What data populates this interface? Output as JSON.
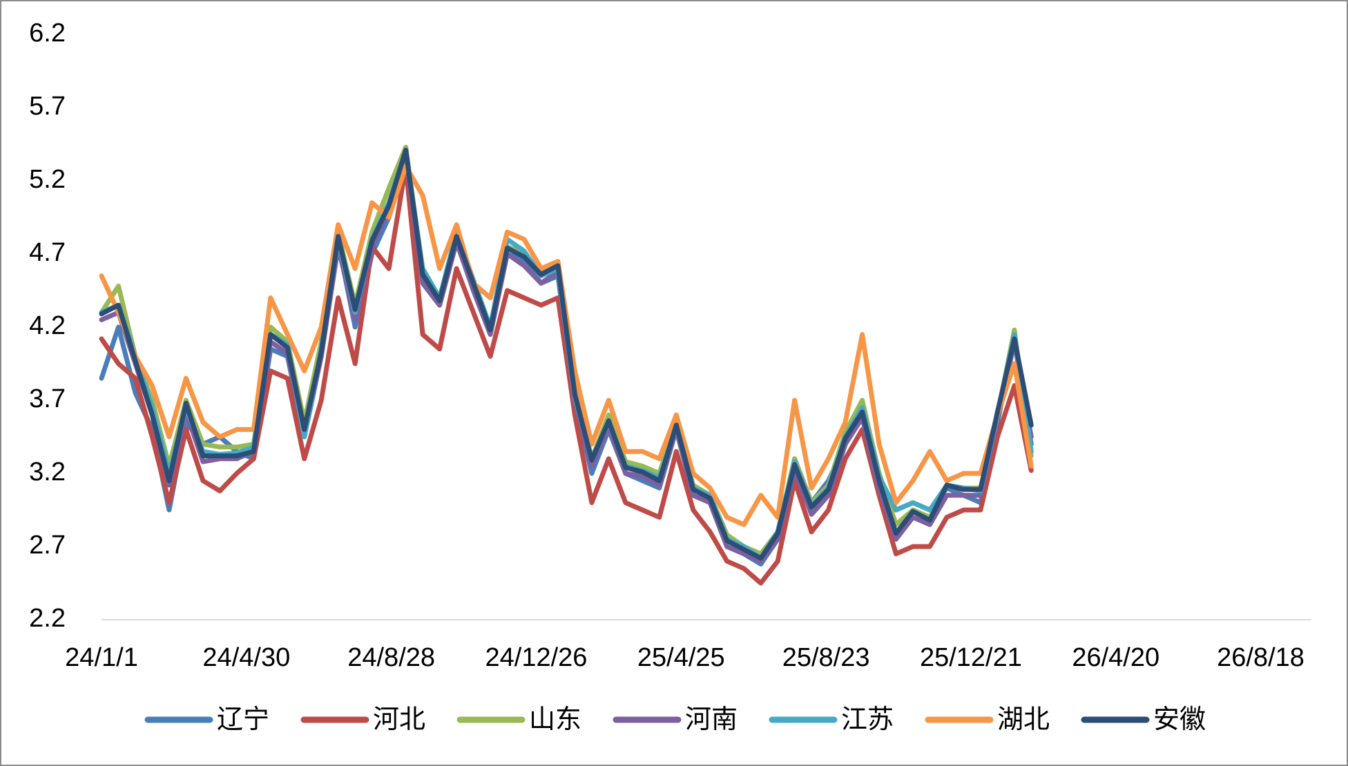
{
  "chart_data": {
    "type": "line",
    "x": [
      "2024-01-01",
      "2024-01-15",
      "2024-01-29",
      "2024-02-12",
      "2024-02-26",
      "2024-03-11",
      "2024-03-25",
      "2024-04-08",
      "2024-04-22",
      "2024-05-06",
      "2024-05-20",
      "2024-06-03",
      "2024-06-17",
      "2024-07-01",
      "2024-07-15",
      "2024-07-29",
      "2024-08-12",
      "2024-08-26",
      "2024-09-09",
      "2024-09-23",
      "2024-10-07",
      "2024-10-21",
      "2024-11-04",
      "2024-11-18",
      "2024-12-02",
      "2024-12-16",
      "2024-12-30",
      "2025-01-13",
      "2025-01-27",
      "2025-02-10",
      "2025-02-24",
      "2025-03-10",
      "2025-03-24",
      "2025-04-07",
      "2025-04-21",
      "2025-05-05",
      "2025-05-19",
      "2025-06-02",
      "2025-06-16",
      "2025-06-30",
      "2025-07-14",
      "2025-07-28",
      "2025-08-11",
      "2025-08-25",
      "2025-09-08",
      "2025-09-22",
      "2025-10-06",
      "2025-10-20",
      "2025-11-03",
      "2025-11-17",
      "2025-12-01",
      "2025-12-15",
      "2025-12-29",
      "2026-01-12",
      "2026-01-26",
      "2026-02-09"
    ],
    "series": [
      {
        "name": "辽宁",
        "color": "#4a7ebb",
        "values": [
          3.85,
          4.2,
          3.75,
          3.5,
          2.95,
          3.55,
          3.4,
          3.45,
          3.35,
          3.3,
          4.05,
          4.0,
          3.45,
          4.0,
          4.78,
          4.2,
          4.7,
          4.95,
          5.41,
          4.5,
          4.35,
          4.8,
          4.45,
          4.15,
          4.7,
          4.65,
          4.5,
          4.55,
          3.7,
          3.2,
          3.5,
          3.2,
          3.15,
          3.1,
          3.5,
          3.05,
          3.0,
          2.7,
          2.65,
          2.58,
          2.75,
          3.3,
          3.0,
          3.15,
          3.4,
          3.6,
          3.1,
          2.95,
          3.0,
          2.95,
          3.1,
          3.05,
          3.0,
          3.55,
          4.1,
          3.4
        ]
      },
      {
        "name": "河北",
        "color": "#be4b48",
        "values": [
          4.12,
          3.95,
          3.85,
          3.45,
          3.0,
          3.5,
          3.15,
          3.08,
          3.2,
          3.3,
          3.9,
          3.85,
          3.3,
          3.7,
          4.4,
          3.95,
          4.75,
          4.6,
          5.3,
          4.15,
          4.05,
          4.6,
          4.3,
          4.0,
          4.45,
          4.4,
          4.35,
          4.4,
          3.6,
          3.0,
          3.3,
          3.0,
          2.95,
          2.9,
          3.35,
          2.95,
          2.8,
          2.6,
          2.55,
          2.45,
          2.6,
          3.15,
          2.8,
          2.95,
          3.3,
          3.5,
          3.05,
          2.65,
          2.7,
          2.7,
          2.9,
          2.95,
          2.95,
          3.45,
          3.8,
          3.22
        ]
      },
      {
        "name": "山东",
        "color": "#98b954",
        "values": [
          4.3,
          4.48,
          4.0,
          3.7,
          3.25,
          3.7,
          3.4,
          3.38,
          3.38,
          3.4,
          4.2,
          4.1,
          3.55,
          4.1,
          4.85,
          4.35,
          4.85,
          5.15,
          5.43,
          4.58,
          4.38,
          4.85,
          4.52,
          4.2,
          4.75,
          4.7,
          4.58,
          4.62,
          3.78,
          3.3,
          3.6,
          3.28,
          3.25,
          3.2,
          3.55,
          3.12,
          3.05,
          2.78,
          2.7,
          2.65,
          2.8,
          3.3,
          3.0,
          3.12,
          3.48,
          3.7,
          3.2,
          2.85,
          2.95,
          2.9,
          3.12,
          3.1,
          3.1,
          3.6,
          4.18,
          3.32
        ]
      },
      {
        "name": "河南",
        "color": "#7d60a0",
        "values": [
          4.25,
          4.3,
          3.95,
          3.6,
          3.12,
          3.62,
          3.28,
          3.3,
          3.3,
          3.35,
          4.1,
          4.02,
          3.48,
          4.0,
          4.75,
          4.25,
          4.75,
          5.0,
          5.38,
          4.5,
          4.35,
          4.78,
          4.45,
          4.15,
          4.7,
          4.62,
          4.5,
          4.58,
          3.7,
          3.25,
          3.52,
          3.2,
          3.18,
          3.12,
          3.5,
          3.05,
          3.0,
          2.7,
          2.65,
          2.6,
          2.75,
          3.22,
          2.92,
          3.05,
          3.4,
          3.58,
          3.1,
          2.75,
          2.9,
          2.85,
          3.05,
          3.05,
          3.05,
          3.58,
          4.1,
          3.45
        ]
      },
      {
        "name": "江苏",
        "color": "#46aac5",
        "values": [
          4.3,
          4.35,
          4.0,
          3.65,
          3.2,
          3.65,
          3.35,
          3.33,
          3.34,
          3.38,
          4.15,
          4.08,
          3.45,
          4.05,
          4.8,
          4.3,
          4.8,
          5.05,
          5.4,
          4.6,
          4.4,
          4.85,
          4.52,
          4.2,
          4.8,
          4.72,
          4.55,
          4.6,
          3.72,
          3.3,
          3.55,
          3.25,
          3.22,
          3.17,
          3.52,
          3.1,
          3.05,
          2.75,
          2.7,
          2.62,
          2.8,
          3.28,
          2.98,
          3.1,
          3.45,
          3.65,
          3.18,
          2.95,
          3.0,
          2.95,
          3.12,
          3.1,
          3.08,
          3.6,
          4.15,
          3.35
        ]
      },
      {
        "name": "湖北",
        "color": "#f79646",
        "values": [
          4.55,
          4.3,
          4.0,
          3.8,
          3.45,
          3.85,
          3.55,
          3.45,
          3.5,
          3.5,
          4.4,
          4.15,
          3.9,
          4.2,
          4.9,
          4.6,
          5.05,
          4.95,
          5.3,
          5.1,
          4.6,
          4.9,
          4.5,
          4.4,
          4.85,
          4.8,
          4.6,
          4.65,
          3.9,
          3.4,
          3.7,
          3.35,
          3.35,
          3.3,
          3.6,
          3.2,
          3.1,
          2.9,
          2.85,
          3.05,
          2.9,
          3.7,
          3.1,
          3.3,
          3.55,
          4.15,
          3.4,
          3.0,
          3.15,
          3.35,
          3.15,
          3.2,
          3.2,
          3.6,
          3.95,
          3.25
        ]
      },
      {
        "name": "安徽",
        "color": "#2c4d75",
        "values": [
          4.29,
          4.35,
          3.97,
          3.6,
          3.15,
          3.68,
          3.32,
          3.32,
          3.32,
          3.35,
          4.15,
          4.06,
          3.5,
          4.03,
          4.82,
          4.32,
          4.79,
          5.03,
          5.41,
          4.56,
          4.38,
          4.82,
          4.5,
          4.18,
          4.74,
          4.68,
          4.56,
          4.62,
          3.74,
          3.29,
          3.56,
          3.24,
          3.21,
          3.15,
          3.53,
          3.09,
          3.03,
          2.74,
          2.68,
          2.62,
          2.79,
          3.26,
          2.97,
          3.09,
          3.44,
          3.62,
          3.15,
          2.79,
          2.94,
          2.88,
          3.12,
          3.09,
          3.09,
          3.62,
          4.12,
          3.53
        ]
      }
    ],
    "xlim": [
      "2024-01-01",
      "2026-09-29"
    ],
    "xticks": [
      {
        "value": "2024-01-01",
        "label": "24/1/1"
      },
      {
        "value": "2024-04-30",
        "label": "24/4/30"
      },
      {
        "value": "2024-08-28",
        "label": "24/8/28"
      },
      {
        "value": "2024-12-26",
        "label": "24/12/26"
      },
      {
        "value": "2025-04-25",
        "label": "25/4/25"
      },
      {
        "value": "2025-08-23",
        "label": "25/8/23"
      },
      {
        "value": "2025-12-21",
        "label": "25/12/21"
      },
      {
        "value": "2026-04-20",
        "label": "26/4/20"
      },
      {
        "value": "2026-08-18",
        "label": "26/8/18"
      }
    ],
    "ylim": [
      2.2,
      6.2
    ],
    "yticks": [
      2.2,
      2.7,
      3.2,
      3.7,
      4.2,
      4.7,
      5.2,
      5.7,
      6.2
    ],
    "legend": "bottom"
  }
}
